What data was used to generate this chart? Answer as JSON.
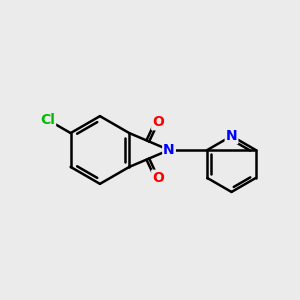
{
  "background_color": "#ebebeb",
  "bond_color": "#000000",
  "bond_width": 1.8,
  "atom_colors": {
    "O": "#ff0000",
    "N": "#0000ff",
    "Cl": "#00bb00",
    "C": "#000000"
  },
  "font_size": 10,
  "figsize": [
    3.0,
    3.0
  ],
  "dpi": 100
}
